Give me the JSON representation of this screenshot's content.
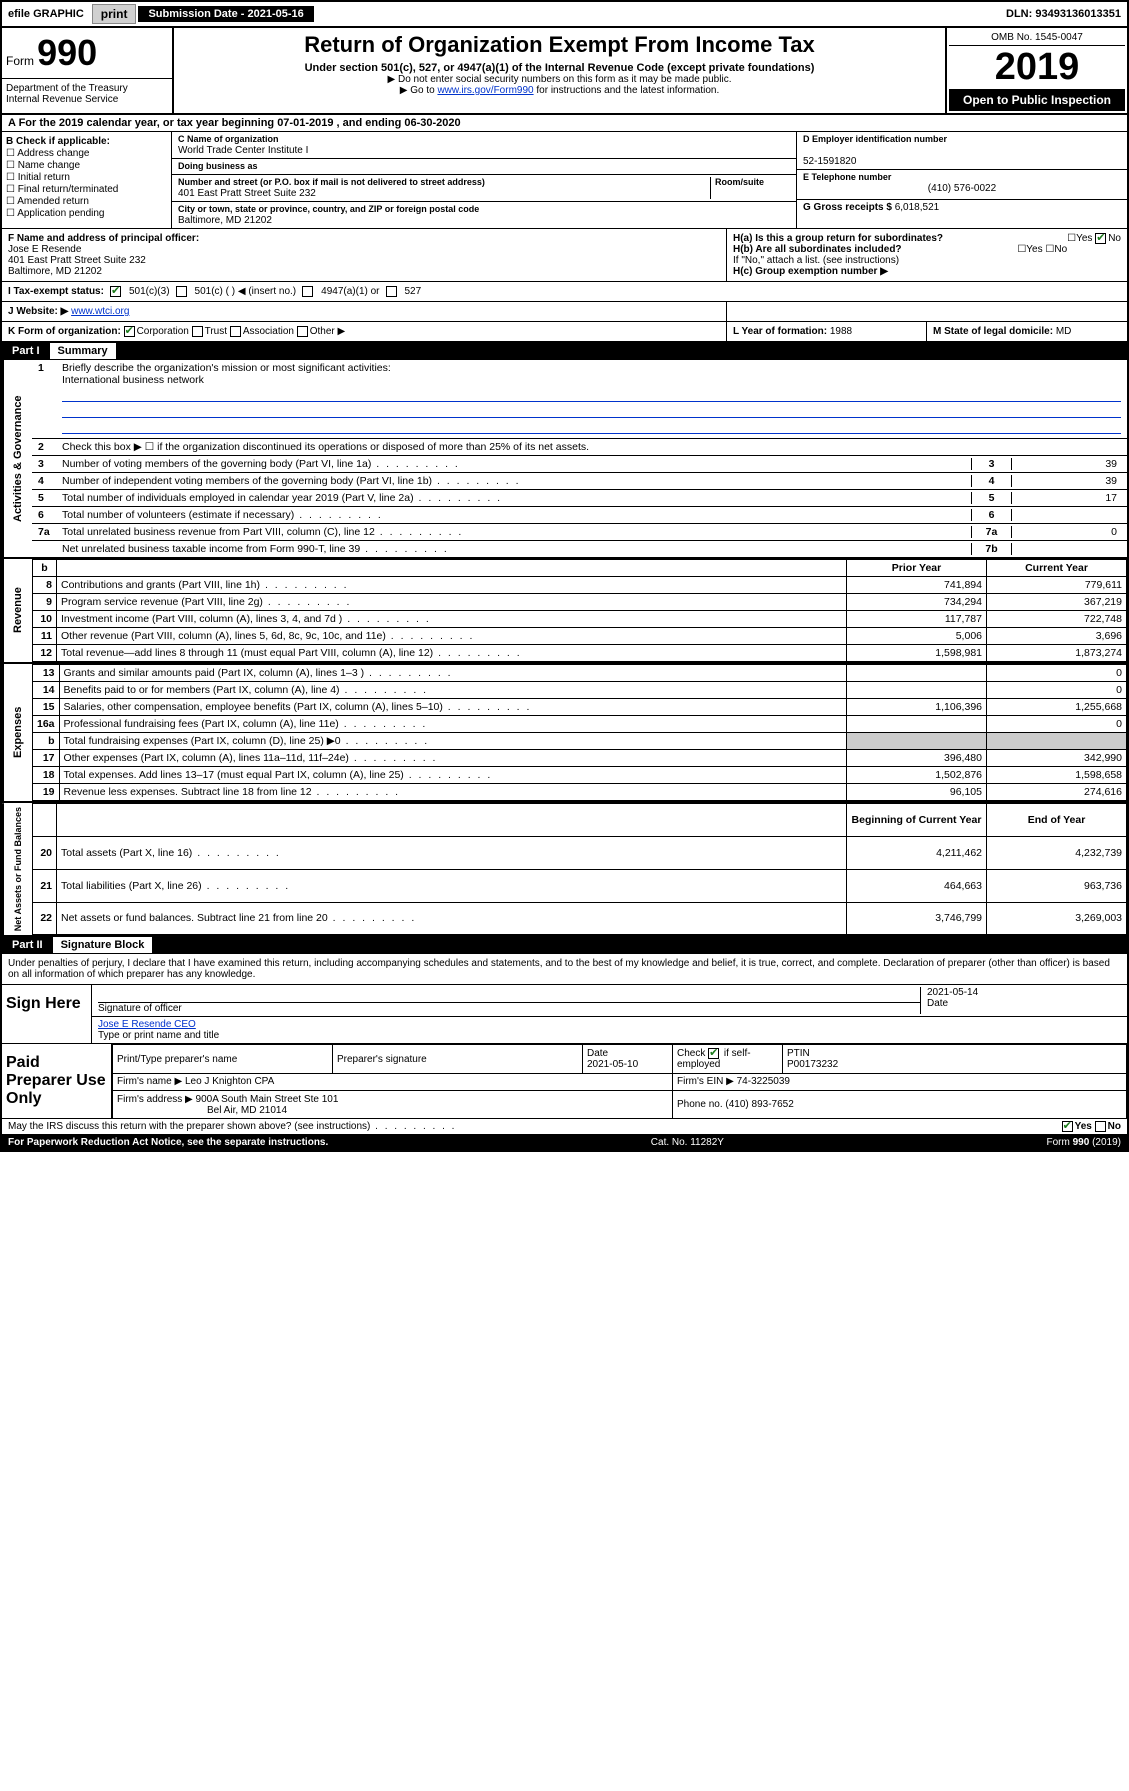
{
  "topbar": {
    "efile": "efile GRAPHIC",
    "print_btn": "print",
    "submission_label": "Submission Date - 2021-05-16",
    "dln": "DLN: 93493136013351"
  },
  "header": {
    "form_word": "Form",
    "form_number": "990",
    "dept": "Department of the Treasury\nInternal Revenue Service",
    "title": "Return of Organization Exempt From Income Tax",
    "subtitle": "Under section 501(c), 527, or 4947(a)(1) of the Internal Revenue Code (except private foundations)",
    "note1": "▶ Do not enter social security numbers on this form as it may be made public.",
    "note2_pre": "▶ Go to ",
    "note2_link": "www.irs.gov/Form990",
    "note2_post": " for instructions and the latest information.",
    "omb": "OMB No. 1545-0047",
    "year": "2019",
    "open": "Open to Public Inspection"
  },
  "rowA": {
    "text": "A For the 2019 calendar year, or tax year beginning 07-01-2019   , and ending 06-30-2020"
  },
  "colB": {
    "label": "B Check if applicable:",
    "items": [
      "Address change",
      "Name change",
      "Initial return",
      "Final return/terminated",
      "Amended return",
      "Application pending"
    ]
  },
  "colC": {
    "name_lbl": "C Name of organization",
    "name": "World Trade Center Institute I",
    "dba_lbl": "Doing business as",
    "dba": "",
    "street_lbl": "Number and street (or P.O. box if mail is not delivered to street address)",
    "room_lbl": "Room/suite",
    "street": "401 East Pratt Street Suite 232",
    "city_lbl": "City or town, state or province, country, and ZIP or foreign postal code",
    "city": "Baltimore, MD  21202"
  },
  "colD": {
    "ein_lbl": "D Employer identification number",
    "ein": "52-1591820",
    "phone_lbl": "E Telephone number",
    "phone": "(410) 576-0022",
    "gross_lbl": "G Gross receipts $",
    "gross": "6,018,521"
  },
  "officer": {
    "lbl": "F  Name and address of principal officer:",
    "name": "Jose E Resende",
    "addr1": "401 East Pratt Street Suite 232",
    "addr2": "Baltimore, MD  21202"
  },
  "hblock": {
    "ha": "H(a)  Is this a group return for subordinates?",
    "hb": "H(b)  Are all subordinates included?",
    "hb_note": "If \"No,\" attach a list. (see instructions)",
    "hc": "H(c)  Group exemption number ▶"
  },
  "taxstatus": {
    "lbl": "I    Tax-exempt status:",
    "opt1": "501(c)(3)",
    "opt2": "501(c) (  ) ◀ (insert no.)",
    "opt3": "4947(a)(1) or",
    "opt4": "527"
  },
  "website": {
    "lbl": "J   Website: ▶",
    "url": "www.wtci.org"
  },
  "rowK": {
    "k_lbl": "K Form of organization:",
    "k_corp": "Corporation",
    "k_trust": "Trust",
    "k_assoc": "Association",
    "k_other": "Other ▶",
    "l_lbl": "L Year of formation:",
    "l_val": "1988",
    "m_lbl": "M State of legal domicile:",
    "m_val": "MD"
  },
  "part1": {
    "tag": "Part I",
    "title": "Summary"
  },
  "activities": {
    "side": "Activities & Governance",
    "l1": "Briefly describe the organization's mission or most significant activities:",
    "l1_val": "International business network",
    "l2": "Check this box ▶ ☐  if the organization discontinued its operations or disposed of more than 25% of its net assets.",
    "l3": "Number of voting members of the governing body (Part VI, line 1a)",
    "l4": "Number of independent voting members of the governing body (Part VI, line 1b)",
    "l5": "Total number of individuals employed in calendar year 2019 (Part V, line 2a)",
    "l6": "Total number of volunteers (estimate if necessary)",
    "l7a": "Total unrelated business revenue from Part VIII, column (C), line 12",
    "l7b": "Net unrelated business taxable income from Form 990-T, line 39",
    "v3": "39",
    "v4": "39",
    "v5": "17",
    "v6": "",
    "v7a": "0",
    "v7b": ""
  },
  "revenue": {
    "side": "Revenue",
    "header_b": "b",
    "py_hdr": "Prior Year",
    "cy_hdr": "Current Year",
    "rows": [
      {
        "n": "8",
        "t": "Contributions and grants (Part VIII, line 1h)",
        "py": "741,894",
        "cy": "779,611"
      },
      {
        "n": "9",
        "t": "Program service revenue (Part VIII, line 2g)",
        "py": "734,294",
        "cy": "367,219"
      },
      {
        "n": "10",
        "t": "Investment income (Part VIII, column (A), lines 3, 4, and 7d )",
        "py": "117,787",
        "cy": "722,748"
      },
      {
        "n": "11",
        "t": "Other revenue (Part VIII, column (A), lines 5, 6d, 8c, 9c, 10c, and 11e)",
        "py": "5,006",
        "cy": "3,696"
      },
      {
        "n": "12",
        "t": "Total revenue—add lines 8 through 11 (must equal Part VIII, column (A), line 12)",
        "py": "1,598,981",
        "cy": "1,873,274"
      }
    ]
  },
  "expenses": {
    "side": "Expenses",
    "rows": [
      {
        "n": "13",
        "t": "Grants and similar amounts paid (Part IX, column (A), lines 1–3 )",
        "py": "",
        "cy": "0"
      },
      {
        "n": "14",
        "t": "Benefits paid to or for members (Part IX, column (A), line 4)",
        "py": "",
        "cy": "0"
      },
      {
        "n": "15",
        "t": "Salaries, other compensation, employee benefits (Part IX, column (A), lines 5–10)",
        "py": "1,106,396",
        "cy": "1,255,668"
      },
      {
        "n": "16a",
        "t": "Professional fundraising fees (Part IX, column (A), line 11e)",
        "py": "",
        "cy": "0"
      },
      {
        "n": "b",
        "t": "Total fundraising expenses (Part IX, column (D), line 25) ▶0",
        "py": "—",
        "cy": "—"
      },
      {
        "n": "17",
        "t": "Other expenses (Part IX, column (A), lines 11a–11d, 11f–24e)",
        "py": "396,480",
        "cy": "342,990"
      },
      {
        "n": "18",
        "t": "Total expenses. Add lines 13–17 (must equal Part IX, column (A), line 25)",
        "py": "1,502,876",
        "cy": "1,598,658"
      },
      {
        "n": "19",
        "t": "Revenue less expenses. Subtract line 18 from line 12",
        "py": "96,105",
        "cy": "274,616"
      }
    ]
  },
  "netassets": {
    "side": "Net Assets or Fund Balances",
    "py_hdr": "Beginning of Current Year",
    "cy_hdr": "End of Year",
    "rows": [
      {
        "n": "20",
        "t": "Total assets (Part X, line 16)",
        "py": "4,211,462",
        "cy": "4,232,739"
      },
      {
        "n": "21",
        "t": "Total liabilities (Part X, line 26)",
        "py": "464,663",
        "cy": "963,736"
      },
      {
        "n": "22",
        "t": "Net assets or fund balances. Subtract line 21 from line 20",
        "py": "3,746,799",
        "cy": "3,269,003"
      }
    ]
  },
  "part2": {
    "tag": "Part II",
    "title": "Signature Block"
  },
  "sig": {
    "declare": "Under penalties of perjury, I declare that I have examined this return, including accompanying schedules and statements, and to the best of my knowledge and belief, it is true, correct, and complete. Declaration of preparer (other than officer) is based on all information of which preparer has any knowledge.",
    "here": "Sign Here",
    "sig_lbl": "Signature of officer",
    "date_lbl": "Date",
    "date": "2021-05-14",
    "name": "Jose E Resende  CEO",
    "name_lbl": "Type or print name and title"
  },
  "preparer": {
    "label": "Paid Preparer Use Only",
    "print_lbl": "Print/Type preparer's name",
    "prep_sig_lbl": "Preparer's signature",
    "date_lbl": "Date",
    "date": "2021-05-10",
    "check_lbl": "Check ☑ if self-employed",
    "ptin_lbl": "PTIN",
    "ptin": "P00173232",
    "firm_name_lbl": "Firm's name    ▶",
    "firm_name": "Leo J Knighton CPA",
    "firm_ein_lbl": "Firm's EIN ▶",
    "firm_ein": "74-3225039",
    "firm_addr_lbl": "Firm's address ▶",
    "firm_addr1": "900A South Main Street Ste 101",
    "firm_addr2": "Bel Air, MD  21014",
    "phone_lbl": "Phone no.",
    "phone": "(410) 893-7652"
  },
  "footer": {
    "discuss": "May the IRS discuss this return with the preparer shown above? (see instructions)",
    "yes": "Yes",
    "no": "No",
    "paperwork": "For Paperwork Reduction Act Notice, see the separate instructions.",
    "cat": "Cat. No. 11282Y",
    "form": "Form 990 (2019)"
  },
  "colors": {
    "link": "#0033cc",
    "check": "#1a7a1a",
    "black": "#000000",
    "grey_btn": "#d0d0d0"
  }
}
